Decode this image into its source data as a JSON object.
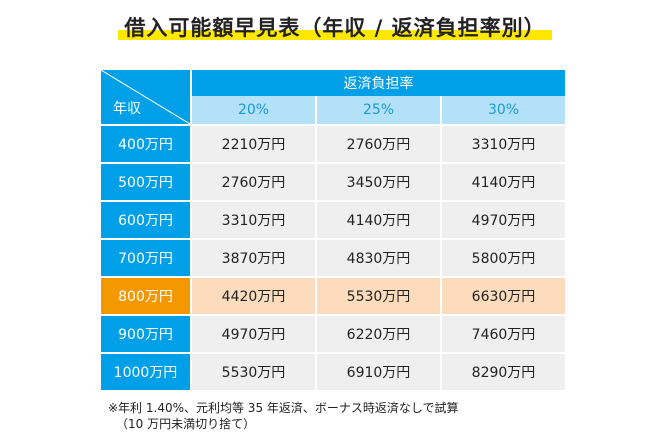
{
  "title": "借入可能額早見表（年収 / 返済負担率別）",
  "table": {
    "corner_label": "年収",
    "header_main": "返済負担率",
    "rates": [
      "20%",
      "25%",
      "30%"
    ],
    "highlight_color": "#f39800",
    "header_color": "#00a0e9",
    "rows": [
      {
        "income": "400万円",
        "values": [
          "2210万円",
          "2760万円",
          "3310万円"
        ]
      },
      {
        "income": "500万円",
        "values": [
          "2760万円",
          "3450万円",
          "4140万円"
        ]
      },
      {
        "income": "600万円",
        "values": [
          "3310万円",
          "4140万円",
          "4970万円"
        ]
      },
      {
        "income": "700万円",
        "values": [
          "3870万円",
          "4830万円",
          "5800万円"
        ]
      },
      {
        "income": "800万円",
        "values": [
          "4420万円",
          "5530万円",
          "6630万円"
        ]
      },
      {
        "income": "900万円",
        "values": [
          "4970万円",
          "6220万円",
          "7460万円"
        ]
      },
      {
        "income": "1000万円",
        "values": [
          "5530万円",
          "6910万円",
          "8290万円"
        ]
      }
    ]
  },
  "note": {
    "line1": "※年利 1.40%、元利均等 35 年返済、ボーナス時返済なしで試算",
    "line2": "（10 万円未満切り捨て）"
  }
}
